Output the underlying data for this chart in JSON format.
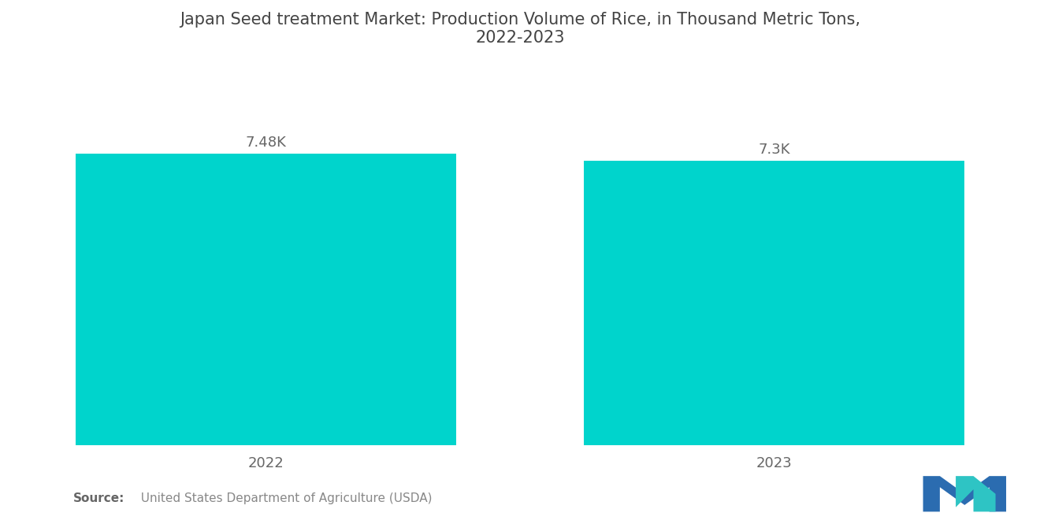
{
  "title": "Japan Seed treatment Market: Production Volume of Rice, in Thousand Metric Tons,\n2022-2023",
  "categories": [
    "2022",
    "2023"
  ],
  "values": [
    7480,
    7300
  ],
  "value_labels": [
    "7.48K",
    "7.3K"
  ],
  "bar_color": "#00D4CC",
  "background_color": "#ffffff",
  "title_fontsize": 15,
  "label_fontsize": 13,
  "tick_fontsize": 13,
  "source_bold": "Source:",
  "source_rest": "  United States Department of Agriculture (USDA)",
  "ylim": [
    0,
    9200
  ],
  "bar_width": 0.75,
  "xlim": [
    -0.5,
    1.5
  ]
}
